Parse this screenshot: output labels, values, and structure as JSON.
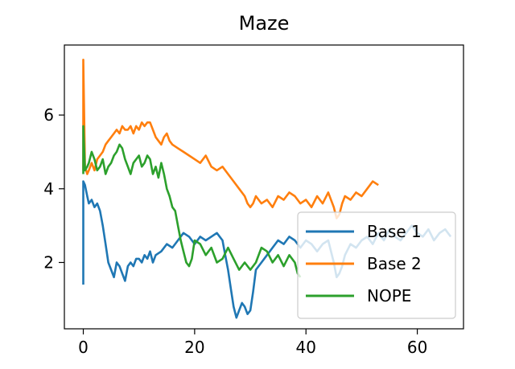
{
  "chart_data": {
    "type": "line",
    "title": "Maze",
    "xlabel": "",
    "ylabel": "",
    "xlim": [
      -3.4,
      68.3
    ],
    "ylim": [
      0.2,
      7.9
    ],
    "xticks": [
      0,
      20,
      40,
      60
    ],
    "yticks": [
      2,
      4,
      6
    ],
    "grid": false,
    "legend_position": "lower-right",
    "series": [
      {
        "name": "Base 1",
        "color": "#1f77b4",
        "x": [
          0,
          0,
          0.3,
          0.7,
          1.0,
          1.5,
          2.0,
          2.5,
          3.0,
          3.5,
          4.0,
          4.5,
          5.0,
          5.5,
          6.0,
          6.5,
          7.0,
          7.5,
          8.0,
          8.5,
          9.0,
          9.5,
          10.0,
          10.5,
          11.0,
          11.5,
          12.0,
          12.5,
          13.0,
          14.0,
          15.0,
          16.0,
          17.0,
          18.0,
          19.0,
          20.0,
          21.0,
          22.0,
          23.0,
          24.0,
          25.0,
          25.5,
          26.0,
          26.5,
          27.0,
          27.5,
          28.0,
          28.5,
          29.0,
          29.5,
          30.0,
          30.5,
          31.0,
          32.0,
          33.0,
          34.0,
          35.0,
          36.0,
          37.0,
          38.0,
          39.0,
          40.0,
          41.0,
          42.0,
          43.0,
          44.0,
          45.0,
          45.5,
          46.0,
          46.5,
          47.0,
          48.0,
          49.0,
          50.0,
          51.0,
          52.0,
          53.0,
          54.0,
          55.0,
          56.0,
          57.0,
          58.0,
          59.0,
          60.0,
          61.0,
          62.0,
          63.0,
          64.0,
          65.0,
          66.0
        ],
        "y": [
          1.4,
          4.2,
          4.1,
          3.8,
          3.6,
          3.7,
          3.5,
          3.6,
          3.4,
          3.0,
          2.5,
          2.0,
          1.8,
          1.6,
          2.0,
          1.9,
          1.7,
          1.5,
          1.9,
          2.0,
          1.9,
          2.1,
          2.1,
          2.0,
          2.2,
          2.1,
          2.3,
          2.0,
          2.2,
          2.3,
          2.5,
          2.4,
          2.6,
          2.8,
          2.7,
          2.5,
          2.7,
          2.6,
          2.7,
          2.8,
          2.6,
          2.2,
          1.8,
          1.3,
          0.8,
          0.5,
          0.7,
          0.9,
          0.8,
          0.6,
          0.7,
          1.2,
          1.8,
          2.0,
          2.2,
          2.4,
          2.6,
          2.5,
          2.7,
          2.6,
          2.4,
          2.6,
          2.5,
          2.3,
          2.5,
          2.6,
          2.0,
          1.6,
          1.7,
          1.9,
          2.2,
          2.5,
          2.4,
          2.6,
          2.7,
          2.5,
          2.8,
          2.6,
          2.9,
          2.7,
          2.6,
          2.8,
          3.0,
          2.8,
          2.7,
          2.9,
          2.6,
          2.8,
          2.9,
          2.7
        ]
      },
      {
        "name": "Base 2",
        "color": "#ff7f0e",
        "x": [
          0,
          0,
          0.3,
          0.7,
          1.0,
          1.5,
          2.0,
          2.5,
          3.0,
          3.5,
          4.0,
          4.5,
          5.0,
          5.5,
          6.0,
          6.5,
          7.0,
          7.5,
          8.0,
          8.5,
          9.0,
          9.5,
          10.0,
          10.5,
          11.0,
          11.5,
          12.0,
          12.5,
          13.0,
          13.5,
          14.0,
          14.5,
          15.0,
          15.5,
          16.0,
          17.0,
          18.0,
          19.0,
          20.0,
          21.0,
          22.0,
          23.0,
          24.0,
          25.0,
          26.0,
          27.0,
          28.0,
          29.0,
          29.5,
          30.0,
          30.5,
          31.0,
          32.0,
          33.0,
          34.0,
          35.0,
          36.0,
          37.0,
          38.0,
          39.0,
          40.0,
          41.0,
          42.0,
          43.0,
          44.0,
          45.0,
          45.5,
          46.0,
          46.5,
          47.0,
          48.0,
          49.0,
          50.0,
          51.0,
          52.0,
          53.0
        ],
        "y": [
          4.5,
          7.5,
          4.6,
          4.4,
          4.5,
          4.7,
          4.5,
          4.8,
          4.9,
          5.0,
          5.2,
          5.3,
          5.4,
          5.5,
          5.6,
          5.5,
          5.7,
          5.6,
          5.6,
          5.7,
          5.5,
          5.7,
          5.6,
          5.8,
          5.7,
          5.8,
          5.8,
          5.6,
          5.4,
          5.3,
          5.2,
          5.4,
          5.5,
          5.3,
          5.2,
          5.1,
          5.0,
          4.9,
          4.8,
          4.7,
          4.9,
          4.6,
          4.5,
          4.6,
          4.4,
          4.2,
          4.0,
          3.8,
          3.6,
          3.5,
          3.6,
          3.8,
          3.6,
          3.7,
          3.5,
          3.8,
          3.7,
          3.9,
          3.8,
          3.6,
          3.7,
          3.5,
          3.8,
          3.6,
          3.9,
          3.5,
          3.2,
          3.3,
          3.6,
          3.8,
          3.7,
          3.9,
          3.8,
          4.0,
          4.2,
          4.1
        ]
      },
      {
        "name": "NOPE",
        "color": "#2ca02c",
        "x": [
          0,
          0,
          0.3,
          0.7,
          1.0,
          1.5,
          2.0,
          2.5,
          3.0,
          3.5,
          4.0,
          4.5,
          5.0,
          5.5,
          6.0,
          6.5,
          7.0,
          7.5,
          8.0,
          8.5,
          9.0,
          9.5,
          10.0,
          10.5,
          11.0,
          11.5,
          12.0,
          12.5,
          13.0,
          13.5,
          14.0,
          14.5,
          15.0,
          15.5,
          16.0,
          16.5,
          17.0,
          17.5,
          18.0,
          18.5,
          19.0,
          19.5,
          20.0,
          21.0,
          22.0,
          23.0,
          24.0,
          25.0,
          26.0,
          27.0,
          28.0,
          29.0,
          30.0,
          31.0,
          32.0,
          33.0,
          34.0,
          35.0,
          36.0,
          37.0,
          38.0,
          38.5,
          39.0
        ],
        "y": [
          4.4,
          5.7,
          4.5,
          4.6,
          4.7,
          5.0,
          4.8,
          4.5,
          4.6,
          4.8,
          4.4,
          4.6,
          4.7,
          4.9,
          5.0,
          5.2,
          5.1,
          4.8,
          4.6,
          4.4,
          4.7,
          4.8,
          4.9,
          4.6,
          4.7,
          4.9,
          4.8,
          4.4,
          4.6,
          4.3,
          4.7,
          4.4,
          4.0,
          3.8,
          3.5,
          3.4,
          3.0,
          2.6,
          2.3,
          2.0,
          1.9,
          2.1,
          2.6,
          2.5,
          2.2,
          2.4,
          2.0,
          2.1,
          2.4,
          2.1,
          1.8,
          2.0,
          1.8,
          2.0,
          2.4,
          2.3,
          2.0,
          2.2,
          1.9,
          2.2,
          2.0,
          1.7,
          1.6
        ]
      }
    ]
  }
}
